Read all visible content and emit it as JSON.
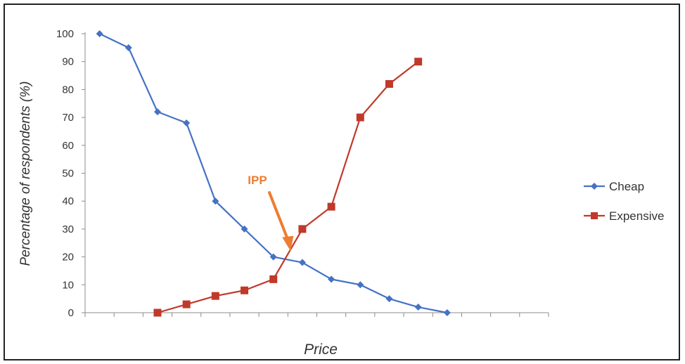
{
  "chart_data": {
    "type": "line",
    "title": "",
    "xlabel": "Price",
    "ylabel": "Percentage of respondents (%)",
    "ylim": [
      0,
      100
    ],
    "yticks": [
      0,
      10,
      20,
      30,
      40,
      50,
      60,
      70,
      80,
      90,
      100
    ],
    "x_categories": 16,
    "grid": false,
    "legend_position": "right",
    "series": [
      {
        "name": "Cheap",
        "color": "#4472c4",
        "marker": "diamond",
        "x": [
          1,
          2,
          3,
          4,
          5,
          6,
          7,
          8,
          9,
          10,
          11,
          12,
          13
        ],
        "values": [
          100,
          95,
          72,
          68,
          40,
          30,
          20,
          18,
          12,
          10,
          5,
          2,
          0
        ]
      },
      {
        "name": "Expensive",
        "color": "#c0392b",
        "marker": "square",
        "x": [
          3,
          4,
          5,
          6,
          7,
          8,
          9,
          10,
          11,
          12
        ],
        "values": [
          0,
          3,
          6,
          8,
          12,
          30,
          38,
          70,
          82,
          90
        ]
      }
    ],
    "annotations": [
      {
        "text": "IPP",
        "color": "#ed7d31",
        "points_to": {
          "x": 7.5,
          "y": 20
        }
      }
    ]
  }
}
